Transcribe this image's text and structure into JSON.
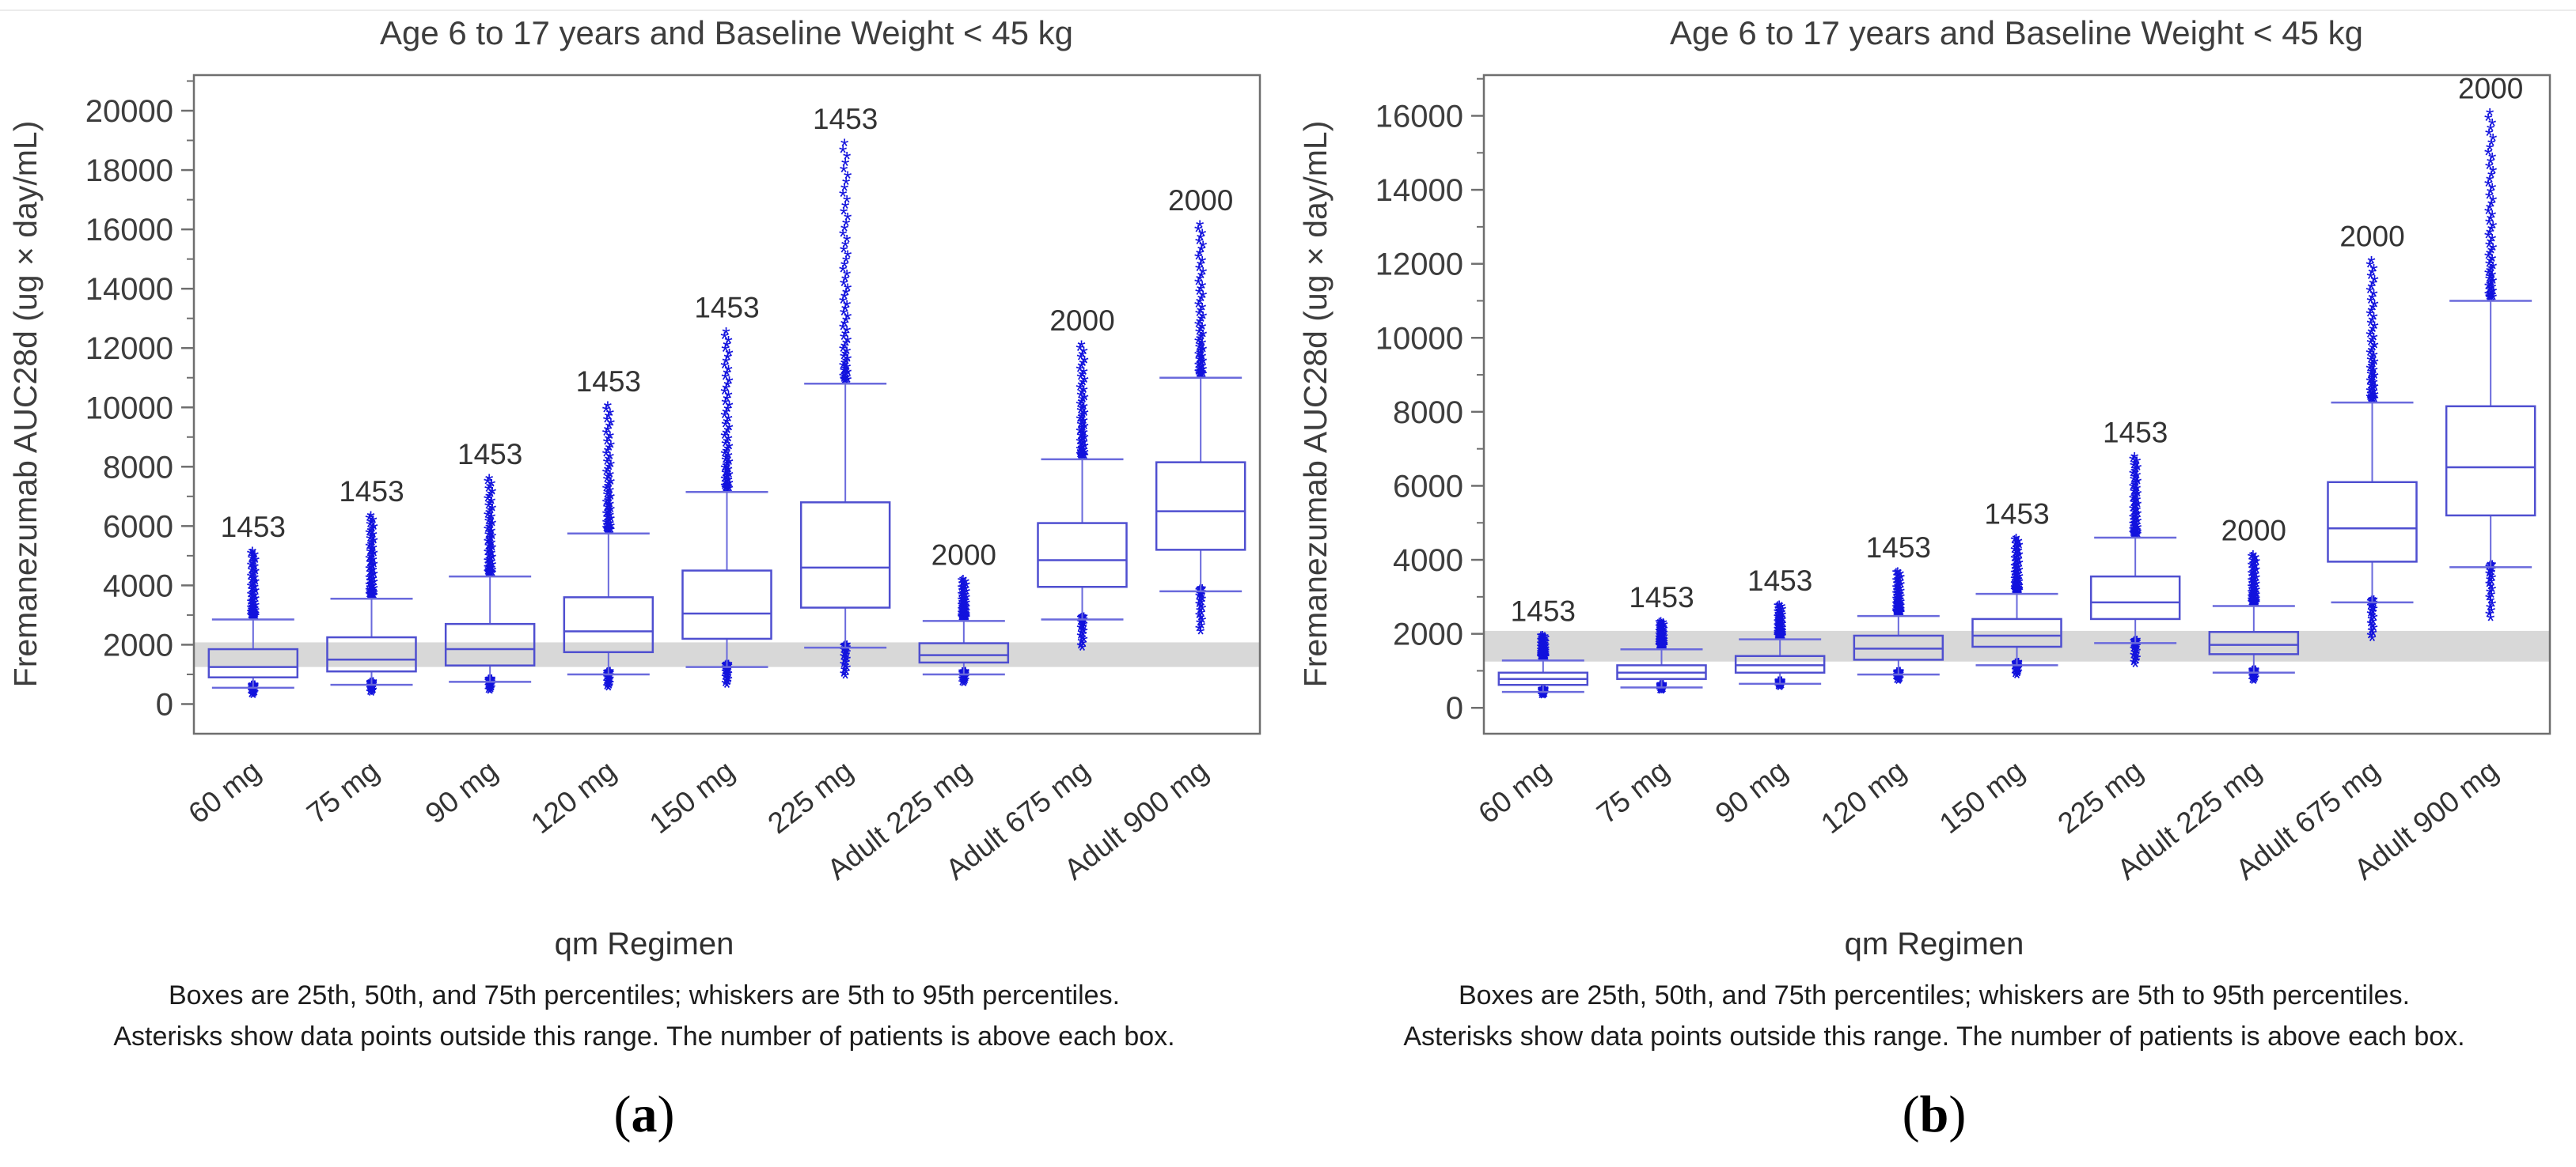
{
  "colors": {
    "box_stroke": "#4f4fd0",
    "whisker_stroke": "#6a6adc",
    "outlier": "#1212dd",
    "band": "#d8d8d8",
    "frame": "#6e6e6e",
    "tick_text": "#3d3d3d",
    "label_text": "#333333",
    "footnote_text": "#1c1c1c"
  },
  "captions": [
    {
      "open": "(",
      "letter": "a",
      "close": ")"
    },
    {
      "open": "(",
      "letter": "b",
      "close": ")"
    }
  ],
  "chart_data": [
    {
      "type": "box",
      "panel": "a",
      "title": "Age 6 to 17 years and Baseline Weight < 45 kg",
      "ylabel": "Fremanezumab AUC28d (ug × day/mL)",
      "xlabel": "qm Regimen",
      "footnote1": "Boxes are 25th, 50th, and 75th percentiles; whiskers are 5th to 95th percentiles.",
      "footnote2": "Asterisks show data points outside this range. The number of patients is above each box.",
      "ylim": [
        -1000,
        21200
      ],
      "yticks": [
        0,
        2000,
        4000,
        6000,
        8000,
        10000,
        12000,
        14000,
        16000,
        18000,
        20000
      ],
      "minor_tick_step": 1000,
      "grid": false,
      "legend": "none",
      "reference_band": [
        1250,
        2080
      ],
      "categories": [
        "60 mg",
        "75 mg",
        "90 mg",
        "120 mg",
        "150 mg",
        "225 mg",
        "Adult 225 mg",
        "Adult 675 mg",
        "Adult 900 mg"
      ],
      "boxes": [
        {
          "n": "1453",
          "whisker_low": 550,
          "q1": 900,
          "median": 1250,
          "q3": 1850,
          "whisker_high": 2850,
          "outlier_min": 200,
          "outlier_max": 5050
        },
        {
          "n": "1453",
          "whisker_low": 650,
          "q1": 1100,
          "median": 1500,
          "q3": 2250,
          "whisker_high": 3550,
          "outlier_min": 280,
          "outlier_max": 6250
        },
        {
          "n": "1453",
          "whisker_low": 750,
          "q1": 1300,
          "median": 1850,
          "q3": 2700,
          "whisker_high": 4300,
          "outlier_min": 350,
          "outlier_max": 7500
        },
        {
          "n": "1453",
          "whisker_low": 1000,
          "q1": 1750,
          "median": 2450,
          "q3": 3600,
          "whisker_high": 5750,
          "outlier_min": 450,
          "outlier_max": 9950
        },
        {
          "n": "1453",
          "whisker_low": 1250,
          "q1": 2200,
          "median": 3050,
          "q3": 4500,
          "whisker_high": 7150,
          "outlier_min": 550,
          "outlier_max": 12450
        },
        {
          "n": "1453",
          "whisker_low": 1900,
          "q1": 3250,
          "median": 4600,
          "q3": 6800,
          "whisker_high": 10800,
          "outlier_min": 850,
          "outlier_max": 18800
        },
        {
          "n": "2000",
          "whisker_low": 1000,
          "q1": 1400,
          "median": 1650,
          "q3": 2050,
          "whisker_high": 2800,
          "outlier_min": 600,
          "outlier_max": 4100
        },
        {
          "n": "2000",
          "whisker_low": 2850,
          "q1": 3950,
          "median": 4850,
          "q3": 6100,
          "whisker_high": 8250,
          "outlier_min": 1800,
          "outlier_max": 12000
        },
        {
          "n": "2000",
          "whisker_low": 3800,
          "q1": 5200,
          "median": 6500,
          "q3": 8150,
          "whisker_high": 11000,
          "outlier_min": 2350,
          "outlier_max": 16050
        }
      ]
    },
    {
      "type": "box",
      "panel": "b",
      "title": "Age 6 to 17 years and Baseline Weight < 45 kg",
      "ylabel": "Fremanezumab AUC28d (ug × day/mL)",
      "xlabel": "qm Regimen",
      "footnote1": "Boxes are 25th, 50th, and 75th percentiles; whiskers are 5th to 95th percentiles.",
      "footnote2": "Asterisks show data points outside this range. The number of patients is above each box.",
      "ylim": [
        -700,
        17100
      ],
      "yticks": [
        0,
        2000,
        4000,
        6000,
        8000,
        10000,
        12000,
        14000,
        16000
      ],
      "minor_tick_step": 1000,
      "grid": false,
      "legend": "none",
      "reference_band": [
        1250,
        2080
      ],
      "categories": [
        "60 mg",
        "75 mg",
        "90 mg",
        "120 mg",
        "150 mg",
        "225 mg",
        "Adult 225 mg",
        "Adult 675 mg",
        "Adult 900 mg"
      ],
      "boxes": [
        {
          "n": "1453",
          "whisker_low": 430,
          "q1": 620,
          "median": 780,
          "q3": 950,
          "whisker_high": 1280,
          "outlier_min": 250,
          "outlier_max": 1880
        },
        {
          "n": "1453",
          "whisker_low": 550,
          "q1": 780,
          "median": 950,
          "q3": 1150,
          "whisker_high": 1580,
          "outlier_min": 380,
          "outlier_max": 2250
        },
        {
          "n": "1453",
          "whisker_low": 650,
          "q1": 950,
          "median": 1150,
          "q3": 1400,
          "whisker_high": 1850,
          "outlier_min": 480,
          "outlier_max": 2700
        },
        {
          "n": "1453",
          "whisker_low": 900,
          "q1": 1300,
          "median": 1600,
          "q3": 1950,
          "whisker_high": 2480,
          "outlier_min": 650,
          "outlier_max": 3600
        },
        {
          "n": "1453",
          "whisker_low": 1150,
          "q1": 1650,
          "median": 1950,
          "q3": 2400,
          "whisker_high": 3080,
          "outlier_min": 800,
          "outlier_max": 4500
        },
        {
          "n": "1453",
          "whisker_low": 1750,
          "q1": 2400,
          "median": 2850,
          "q3": 3550,
          "whisker_high": 4600,
          "outlier_min": 1100,
          "outlier_max": 6700
        },
        {
          "n": "2000",
          "whisker_low": 950,
          "q1": 1450,
          "median": 1700,
          "q3": 2050,
          "whisker_high": 2750,
          "outlier_min": 650,
          "outlier_max": 4050
        },
        {
          "n": "2000",
          "whisker_low": 2850,
          "q1": 3950,
          "median": 4850,
          "q3": 6100,
          "whisker_high": 8250,
          "outlier_min": 1800,
          "outlier_max": 12000
        },
        {
          "n": "2000",
          "whisker_low": 3800,
          "q1": 5200,
          "median": 6500,
          "q3": 8150,
          "whisker_high": 11000,
          "outlier_min": 2350,
          "outlier_max": 16000
        }
      ]
    }
  ]
}
